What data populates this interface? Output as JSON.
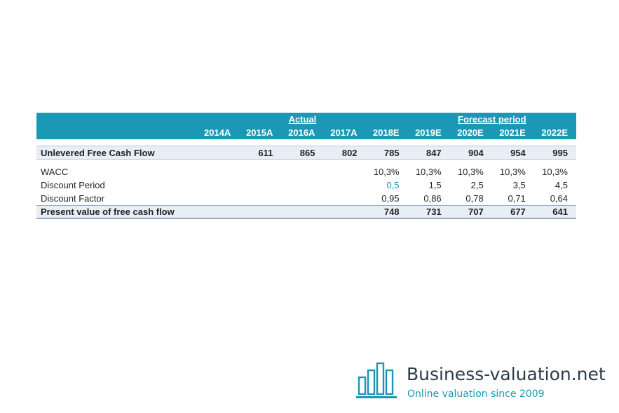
{
  "table": {
    "group_actual": "Actual",
    "group_forecast": "Forecast period",
    "years": [
      "2014A",
      "2015A",
      "2016A",
      "2017A",
      "2018E",
      "2019E",
      "2020E",
      "2021E",
      "2022E"
    ],
    "ufcf": {
      "label": "Unlevered Free Cash Flow",
      "values": [
        "",
        "611",
        "865",
        "802",
        "785",
        "847",
        "904",
        "954",
        "995"
      ]
    },
    "wacc": {
      "label": "WACC",
      "values": [
        "",
        "",
        "",
        "",
        "10,3%",
        "10,3%",
        "10,3%",
        "10,3%",
        "10,3%"
      ]
    },
    "discount_period": {
      "label": "Discount Period",
      "values": [
        "",
        "",
        "",
        "",
        "0,5",
        "1,5",
        "2,5",
        "3,5",
        "4,5"
      ]
    },
    "discount_factor": {
      "label": "Discount Factor",
      "values": [
        "",
        "",
        "",
        "",
        "0,95",
        "0,86",
        "0,78",
        "0,71",
        "0,64"
      ]
    },
    "pv": {
      "label": "Present value of free cash flow",
      "values": [
        "",
        "",
        "",
        "",
        "748",
        "731",
        "707",
        "677",
        "641"
      ]
    }
  },
  "logo": {
    "title": "Business-valuation.net",
    "subtitle": "Online valuation since 2009",
    "icon": "bar-chart-icon",
    "color_brand": "#1b95b3"
  },
  "colors": {
    "header_bg": "#1b98b6",
    "highlight_row_bg": "#e7eef6"
  }
}
